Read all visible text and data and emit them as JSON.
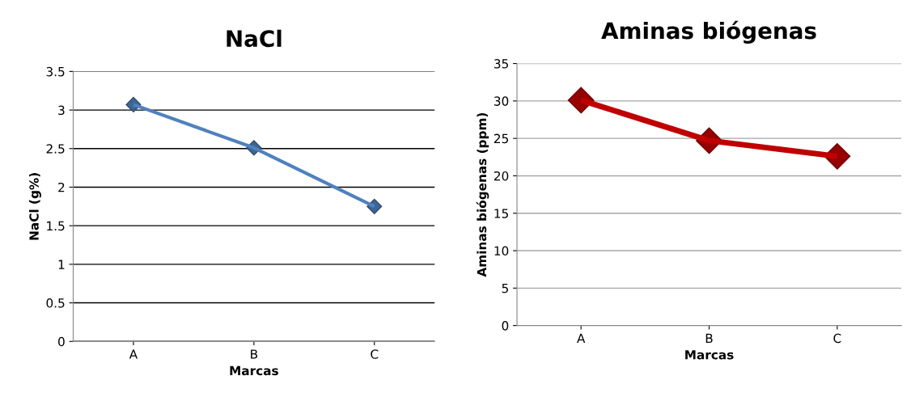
{
  "chart_data": [
    {
      "type": "line",
      "title": "NaCl",
      "xlabel": "Marcas",
      "ylabel": "NaCl (g%)",
      "categories": [
        "A",
        "B",
        "C"
      ],
      "series": [
        {
          "color": "#4f81bd",
          "values": [
            3.07,
            2.51,
            1.75
          ]
        }
      ],
      "ylim": [
        0,
        3.5
      ],
      "yticks": [
        0,
        0.5,
        1,
        1.5,
        2,
        2.5,
        3,
        3.5
      ],
      "grid": "y",
      "marker": "diamond",
      "line_style": "solid"
    },
    {
      "type": "line",
      "title": "Aminas biógenas",
      "xlabel": "Marcas",
      "ylabel": "Aminas biógenas (ppm)",
      "categories": [
        "A",
        "B",
        "C"
      ],
      "series": [
        {
          "color": "#c00000",
          "values": [
            30.1,
            24.7,
            22.6
          ]
        }
      ],
      "ylim": [
        0,
        35
      ],
      "yticks": [
        0,
        5,
        10,
        15,
        20,
        25,
        30,
        35
      ],
      "grid": "y",
      "marker": "diamond",
      "line_style": "solid"
    }
  ]
}
